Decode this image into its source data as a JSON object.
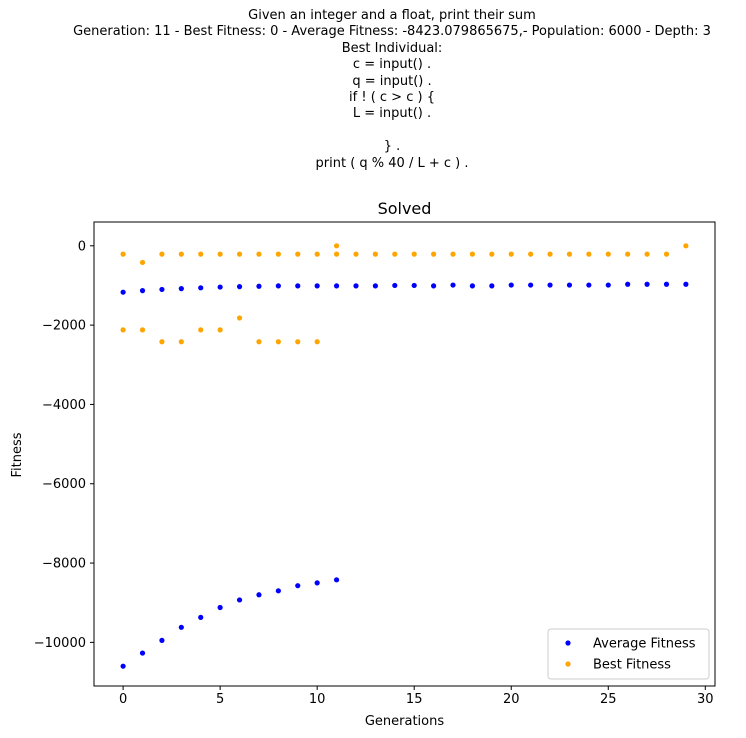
{
  "header_lines": [
    "Given an integer and a float, print their sum",
    "Generation: 11 - Best Fitness: 0 - Average Fitness: -8423.079865675,- Population: 6000 - Depth: 3",
    "Best Individual:",
    "c = input() .",
    "q = input() .",
    "if ! ( c > c ) {",
    "L = input() .",
    "",
    "} .",
    "print ( q % 40 / L + c ) ."
  ],
  "chart_data": {
    "type": "scatter",
    "title": "Solved",
    "xlabel": "Generations",
    "ylabel": "Fitness",
    "xlim": [
      -1.5,
      30.5
    ],
    "ylim": [
      -11100,
      600
    ],
    "xticks": [
      0,
      5,
      10,
      15,
      20,
      25,
      30
    ],
    "yticks": [
      0,
      -2000,
      -4000,
      -6000,
      -8000,
      -10000
    ],
    "grid": false,
    "legend_position": "bottom-right",
    "series": [
      {
        "name": "Average Fitness",
        "color": "#0000ff",
        "points": [
          [
            0,
            -1170
          ],
          [
            1,
            -1130
          ],
          [
            2,
            -1100
          ],
          [
            3,
            -1080
          ],
          [
            4,
            -1060
          ],
          [
            5,
            -1040
          ],
          [
            6,
            -1030
          ],
          [
            7,
            -1020
          ],
          [
            8,
            -1010
          ],
          [
            9,
            -1010
          ],
          [
            10,
            -1010
          ],
          [
            11,
            -1010
          ],
          [
            12,
            -1010
          ],
          [
            13,
            -1010
          ],
          [
            14,
            -1000
          ],
          [
            15,
            -1000
          ],
          [
            16,
            -1010
          ],
          [
            17,
            -990
          ],
          [
            18,
            -1010
          ],
          [
            19,
            -1010
          ],
          [
            20,
            -990
          ],
          [
            21,
            -990
          ],
          [
            22,
            -990
          ],
          [
            23,
            -990
          ],
          [
            24,
            -990
          ],
          [
            25,
            -990
          ],
          [
            26,
            -970
          ],
          [
            27,
            -970
          ],
          [
            28,
            -970
          ],
          [
            29,
            -970
          ],
          [
            0,
            -10600
          ],
          [
            1,
            -10270
          ],
          [
            2,
            -9950
          ],
          [
            3,
            -9620
          ],
          [
            4,
            -9370
          ],
          [
            5,
            -9120
          ],
          [
            6,
            -8930
          ],
          [
            7,
            -8800
          ],
          [
            8,
            -8700
          ],
          [
            9,
            -8570
          ],
          [
            10,
            -8500
          ],
          [
            11,
            -8423
          ]
        ]
      },
      {
        "name": "Best Fitness",
        "color": "#ffa500",
        "points": [
          [
            0,
            -210
          ],
          [
            1,
            -420
          ],
          [
            2,
            -210
          ],
          [
            3,
            -210
          ],
          [
            4,
            -210
          ],
          [
            5,
            -210
          ],
          [
            6,
            -210
          ],
          [
            7,
            -210
          ],
          [
            8,
            -210
          ],
          [
            9,
            -210
          ],
          [
            10,
            -210
          ],
          [
            11,
            -210
          ],
          [
            11,
            0
          ],
          [
            12,
            -210
          ],
          [
            13,
            -210
          ],
          [
            14,
            -210
          ],
          [
            15,
            -210
          ],
          [
            16,
            -210
          ],
          [
            17,
            -210
          ],
          [
            18,
            -210
          ],
          [
            19,
            -210
          ],
          [
            20,
            -210
          ],
          [
            21,
            -210
          ],
          [
            22,
            -210
          ],
          [
            23,
            -210
          ],
          [
            24,
            -210
          ],
          [
            25,
            -210
          ],
          [
            26,
            -210
          ],
          [
            27,
            -210
          ],
          [
            28,
            -210
          ],
          [
            29,
            0
          ],
          [
            0,
            -2120
          ],
          [
            1,
            -2120
          ],
          [
            2,
            -2420
          ],
          [
            3,
            -2420
          ],
          [
            4,
            -2120
          ],
          [
            5,
            -2120
          ],
          [
            6,
            -1820
          ],
          [
            7,
            -2420
          ],
          [
            8,
            -2420
          ],
          [
            9,
            -2420
          ],
          [
            10,
            -2420
          ]
        ]
      }
    ]
  }
}
